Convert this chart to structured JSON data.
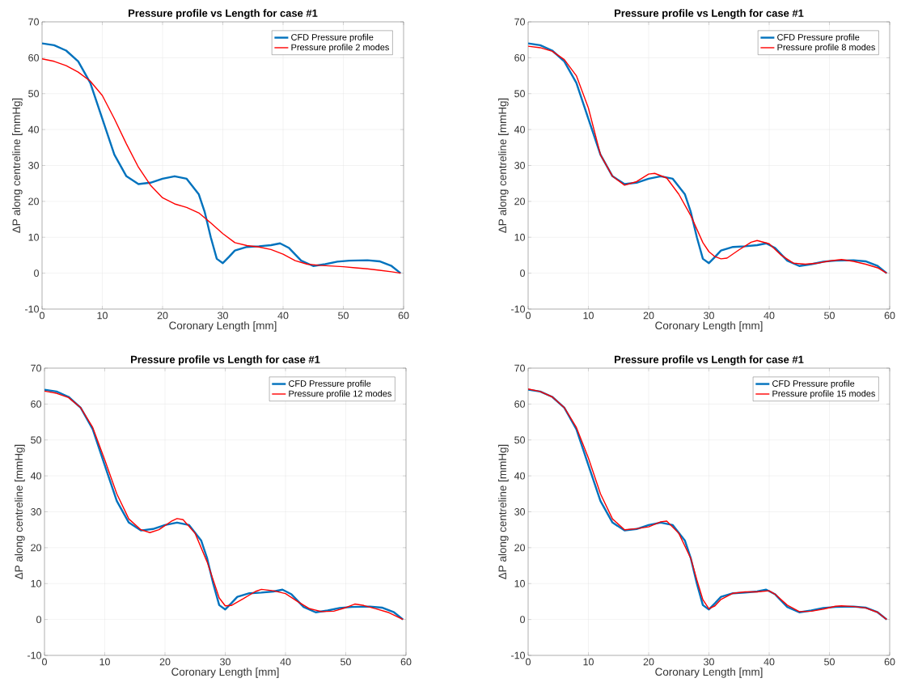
{
  "chart_data": [
    {
      "type": "line",
      "title": "Pressure profile vs Length for case #1",
      "xlabel": "Coronary Length [mm]",
      "ylabel": "ΔP along centreline [mmHg]",
      "xlim": [
        0,
        60
      ],
      "ylim": [
        -10,
        70
      ],
      "xticks": [
        0,
        10,
        20,
        30,
        40,
        50,
        60
      ],
      "yticks": [
        -10,
        0,
        10,
        20,
        30,
        40,
        50,
        60,
        70
      ],
      "grid": true,
      "legend": "top right",
      "series": [
        {
          "name": "CFD Pressure profile",
          "color": "#0072bd",
          "x": [
            0,
            2,
            4,
            6,
            8,
            10,
            12,
            14,
            16,
            18,
            20,
            22,
            24,
            26,
            27,
            28,
            29,
            30,
            31,
            32,
            34,
            36,
            38,
            39.5,
            41,
            43,
            45,
            47,
            49,
            51,
            54,
            56,
            58,
            59.5
          ],
          "values": [
            64,
            63.5,
            62,
            59,
            53,
            43,
            33,
            27,
            24.8,
            25.2,
            26.3,
            27,
            26.3,
            22,
            17,
            10,
            4,
            2.8,
            4.5,
            6.3,
            7.3,
            7.5,
            7.8,
            8.3,
            7,
            3.5,
            2,
            2.5,
            3.2,
            3.5,
            3.6,
            3.3,
            2,
            0
          ]
        },
        {
          "name": "Pressure profile 2 modes",
          "color": "#ff0000",
          "x": [
            0,
            2,
            4,
            6,
            8,
            10,
            12,
            14,
            16,
            18,
            20,
            22,
            24,
            26,
            28,
            30,
            32,
            34,
            36,
            38,
            40,
            42,
            44,
            46,
            48,
            50,
            52,
            54,
            56,
            58,
            59.5
          ],
          "values": [
            59.7,
            59,
            57.8,
            56,
            53.5,
            49.5,
            43,
            36,
            29.5,
            24.5,
            21,
            19.3,
            18.3,
            16.8,
            14,
            11,
            8.5,
            7.7,
            7.3,
            6.6,
            5.3,
            3.5,
            2.5,
            2.2,
            2,
            1.8,
            1.5,
            1.2,
            0.8,
            0.4,
            0
          ]
        }
      ]
    },
    {
      "type": "line",
      "title": "Pressure profile vs Length for case #1",
      "xlabel": "Coronary Length [mm]",
      "ylabel": "ΔP along centreline [mmHg]",
      "xlim": [
        0,
        60
      ],
      "ylim": [
        -10,
        70
      ],
      "xticks": [
        0,
        10,
        20,
        30,
        40,
        50,
        60
      ],
      "yticks": [
        -10,
        0,
        10,
        20,
        30,
        40,
        50,
        60,
        70
      ],
      "grid": true,
      "legend": "top right",
      "series": [
        {
          "name": "CFD Pressure profile",
          "color": "#0072bd",
          "x": [
            0,
            2,
            4,
            6,
            8,
            10,
            12,
            14,
            16,
            18,
            20,
            22,
            24,
            26,
            27,
            28,
            29,
            30,
            31,
            32,
            34,
            36,
            38,
            39.5,
            41,
            43,
            45,
            47,
            49,
            51,
            54,
            56,
            58,
            59.5
          ],
          "values": [
            64,
            63.5,
            62,
            59,
            53,
            43,
            33,
            27,
            24.8,
            25.2,
            26.3,
            27,
            26.3,
            22,
            17,
            10,
            4,
            2.8,
            4.5,
            6.3,
            7.3,
            7.5,
            7.8,
            8.3,
            7,
            3.5,
            2,
            2.5,
            3.2,
            3.5,
            3.6,
            3.3,
            2,
            0
          ]
        },
        {
          "name": "Pressure profile 8 modes",
          "color": "#ff0000",
          "x": [
            0,
            2,
            4,
            6,
            8,
            10,
            12,
            14,
            16,
            18,
            20,
            21,
            23,
            25,
            27,
            29,
            30,
            31,
            32,
            33,
            35,
            37,
            38,
            40,
            42,
            44,
            46,
            48,
            50,
            52,
            54,
            56,
            58,
            59.5
          ],
          "values": [
            63.2,
            62.8,
            61.8,
            59.5,
            55,
            46,
            33,
            27,
            24.5,
            25.5,
            27.6,
            27.8,
            26.5,
            22,
            16,
            8.5,
            6,
            4.6,
            4,
            4.2,
            6.5,
            8.6,
            9.1,
            8.2,
            5,
            2.8,
            2.5,
            2.8,
            3.4,
            3.8,
            3.3,
            2.5,
            1.5,
            0
          ]
        }
      ]
    },
    {
      "type": "line",
      "title": "Pressure profile vs Length for case #1",
      "xlabel": "Coronary Length [mm]",
      "ylabel": "ΔP along centreline [mmHg]",
      "xlim": [
        0,
        60
      ],
      "ylim": [
        -10,
        70
      ],
      "xticks": [
        0,
        10,
        20,
        30,
        40,
        50,
        60
      ],
      "yticks": [
        -10,
        0,
        10,
        20,
        30,
        40,
        50,
        60,
        70
      ],
      "grid": true,
      "legend": "top right",
      "series": [
        {
          "name": "CFD Pressure profile",
          "color": "#0072bd",
          "x": [
            0,
            2,
            4,
            6,
            8,
            10,
            12,
            14,
            16,
            18,
            20,
            22,
            24,
            26,
            27,
            28,
            29,
            30,
            31,
            32,
            34,
            36,
            38,
            39.5,
            41,
            43,
            45,
            47,
            49,
            51,
            54,
            56,
            58,
            59.5
          ],
          "values": [
            64,
            63.5,
            62,
            59,
            53,
            43,
            33,
            27,
            24.8,
            25.2,
            26.3,
            27,
            26.3,
            22,
            17,
            10,
            4,
            2.8,
            4.5,
            6.3,
            7.3,
            7.5,
            7.8,
            8.3,
            7,
            3.5,
            2,
            2.5,
            3.2,
            3.5,
            3.6,
            3.3,
            2,
            0
          ]
        },
        {
          "name": "Pressure profile 12 modes",
          "color": "#ff0000",
          "x": [
            0,
            2,
            4,
            6,
            8,
            10,
            12,
            14,
            16,
            17.5,
            19,
            21,
            22,
            23,
            25,
            27,
            28,
            29,
            30,
            31,
            33,
            35,
            36,
            38,
            40,
            42,
            44,
            46,
            48,
            50,
            51.5,
            53,
            55,
            57,
            59.5
          ],
          "values": [
            63.6,
            63,
            61.8,
            59,
            53.5,
            44.5,
            35,
            28,
            25,
            24.2,
            25,
            27.3,
            28.1,
            27.8,
            24,
            16,
            11,
            6,
            3.8,
            3.9,
            5.8,
            7.8,
            8.4,
            8,
            7.2,
            5,
            3,
            2.2,
            2.3,
            3.3,
            4.3,
            3.9,
            3,
            2,
            0
          ]
        }
      ]
    },
    {
      "type": "line",
      "title": "Pressure profile vs Length for case #1",
      "xlabel": "Coronary Length [mm]",
      "ylabel": "ΔP along centreline [mmHg]",
      "xlim": [
        0,
        60
      ],
      "ylim": [
        -10,
        70
      ],
      "xticks": [
        0,
        10,
        20,
        30,
        40,
        50,
        60
      ],
      "yticks": [
        -10,
        0,
        10,
        20,
        30,
        40,
        50,
        60,
        70
      ],
      "grid": true,
      "legend": "top right",
      "series": [
        {
          "name": "CFD Pressure profile",
          "color": "#0072bd",
          "x": [
            0,
            2,
            4,
            6,
            8,
            10,
            12,
            14,
            16,
            18,
            20,
            22,
            24,
            26,
            27,
            28,
            29,
            30,
            31,
            32,
            34,
            36,
            38,
            39.5,
            41,
            43,
            45,
            47,
            49,
            51,
            54,
            56,
            58,
            59.5
          ],
          "values": [
            64,
            63.5,
            62,
            59,
            53,
            43,
            33,
            27,
            24.8,
            25.2,
            26.3,
            27,
            26.3,
            22,
            17,
            10,
            4,
            2.8,
            4.5,
            6.3,
            7.3,
            7.5,
            7.8,
            8.3,
            7,
            3.5,
            2,
            2.5,
            3.2,
            3.5,
            3.6,
            3.3,
            2,
            0
          ]
        },
        {
          "name": "Pressure profile 15 modes",
          "color": "#ff0000",
          "x": [
            0,
            2,
            4,
            6,
            8,
            10,
            12,
            14,
            16,
            18,
            20,
            22,
            23,
            25,
            27,
            28,
            29,
            30,
            31,
            32,
            34,
            36,
            38,
            40,
            41,
            43,
            45,
            47,
            49,
            51,
            52,
            54,
            56,
            58,
            59.5
          ],
          "values": [
            64.2,
            63.5,
            62,
            59,
            53.5,
            45,
            35,
            28,
            25,
            25.3,
            25.8,
            27.2,
            27.4,
            24,
            17,
            11,
            5.5,
            3,
            3.8,
            5.6,
            7.3,
            7.7,
            7.7,
            8,
            7,
            4,
            2.2,
            2.3,
            2.9,
            3.7,
            3.8,
            3.6,
            3.2,
            2,
            0
          ]
        }
      ]
    }
  ]
}
